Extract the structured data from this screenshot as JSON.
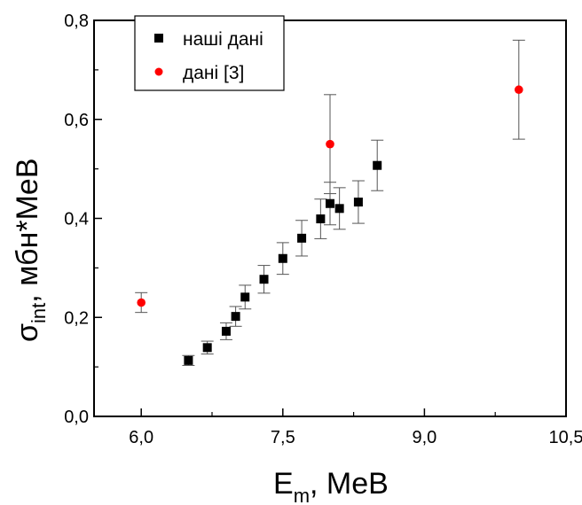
{
  "chart_data": {
    "type": "scatter",
    "xlabel": {
      "main": "E",
      "sub": "m",
      "tail": ",  MeB"
    },
    "ylabel": {
      "main": "σ",
      "sub": "int",
      "tail": ",  мбн*MeB"
    },
    "xlim": [
      5.5,
      10.5
    ],
    "ylim": [
      0.0,
      0.8
    ],
    "xticks": [
      6.0,
      7.5,
      9.0,
      10.5
    ],
    "xtick_labels": [
      "6,0",
      "7,5",
      "9,0",
      "10,5"
    ],
    "yticks": [
      0.0,
      0.2,
      0.4,
      0.6,
      0.8
    ],
    "ytick_labels": [
      "0,0",
      "0,2",
      "0,4",
      "0,6",
      "0,8"
    ],
    "legend_position": "top-left",
    "series": [
      {
        "name": "наші дані",
        "marker": "square",
        "color": "#000000",
        "points": [
          {
            "x": 6.5,
            "y": 0.113,
            "err": 0.01
          },
          {
            "x": 6.7,
            "y": 0.139,
            "err": 0.013
          },
          {
            "x": 6.9,
            "y": 0.172,
            "err": 0.017
          },
          {
            "x": 7.0,
            "y": 0.202,
            "err": 0.02
          },
          {
            "x": 7.1,
            "y": 0.241,
            "err": 0.024
          },
          {
            "x": 7.3,
            "y": 0.277,
            "err": 0.028
          },
          {
            "x": 7.5,
            "y": 0.319,
            "err": 0.032
          },
          {
            "x": 7.7,
            "y": 0.36,
            "err": 0.036
          },
          {
            "x": 7.9,
            "y": 0.399,
            "err": 0.04
          },
          {
            "x": 8.0,
            "y": 0.43,
            "err": 0.043
          },
          {
            "x": 8.1,
            "y": 0.42,
            "err": 0.042
          },
          {
            "x": 8.3,
            "y": 0.433,
            "err": 0.043
          },
          {
            "x": 8.5,
            "y": 0.507,
            "err": 0.051
          }
        ]
      },
      {
        "name": "дані [3]",
        "marker": "circle",
        "color": "#ff0000",
        "points": [
          {
            "x": 6.0,
            "y": 0.23,
            "err": 0.02
          },
          {
            "x": 8.0,
            "y": 0.55,
            "err": 0.1
          },
          {
            "x": 10.0,
            "y": 0.66,
            "err": 0.1
          }
        ]
      }
    ]
  }
}
